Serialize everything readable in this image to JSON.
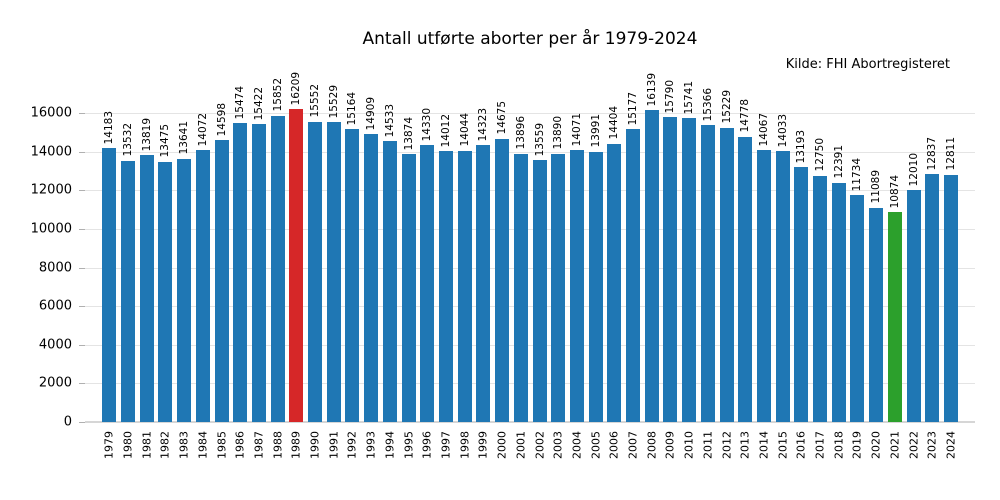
{
  "title": "Antall utførte aborter per år 1979-2024",
  "source": "Kilde: FHI Abortregisteret",
  "colors": {
    "bar_default": "#1f77b4",
    "bar_highlight_max": "#d62728",
    "bar_highlight_min": "#2ca02c",
    "gridline": "#e4e4e4",
    "baseline": "#d6d6d6",
    "tick": "#b0b0b0",
    "text": "#000000"
  },
  "chart_data": {
    "type": "bar",
    "title": "Antall utførte aborter per år 1979-2024",
    "annotation": "Kilde: FHI Abortregisteret",
    "xlabel": "",
    "ylabel": "",
    "ylim": [
      0,
      16000
    ],
    "yticks": [
      0,
      2000,
      4000,
      6000,
      8000,
      10000,
      12000,
      14000,
      16000
    ],
    "grid": "horizontal",
    "legend": false,
    "bar_labels": true,
    "categories": [
      "1979",
      "1980",
      "1981",
      "1982",
      "1983",
      "1984",
      "1985",
      "1986",
      "1987",
      "1988",
      "1989",
      "1990",
      "1991",
      "1992",
      "1993",
      "1994",
      "1995",
      "1996",
      "1997",
      "1998",
      "1999",
      "2000",
      "2001",
      "2002",
      "2003",
      "2004",
      "2005",
      "2006",
      "2007",
      "2008",
      "2009",
      "2010",
      "2011",
      "2012",
      "2013",
      "2014",
      "2015",
      "2016",
      "2017",
      "2018",
      "2019",
      "2020",
      "2021",
      "2022",
      "2023",
      "2024"
    ],
    "values": [
      14183,
      13532,
      13819,
      13475,
      13641,
      14072,
      14598,
      15474,
      15422,
      15852,
      16209,
      15552,
      15529,
      15164,
      14909,
      14533,
      13874,
      14330,
      14012,
      14044,
      14323,
      14675,
      13896,
      13559,
      13890,
      14071,
      13991,
      14404,
      15177,
      16139,
      15790,
      15741,
      15366,
      15229,
      14778,
      14067,
      14033,
      13193,
      12750,
      12391,
      11734,
      11089,
      10874,
      12010,
      12837,
      12811
    ],
    "highlights": {
      "1989": "#d62728",
      "2021": "#2ca02c"
    }
  }
}
